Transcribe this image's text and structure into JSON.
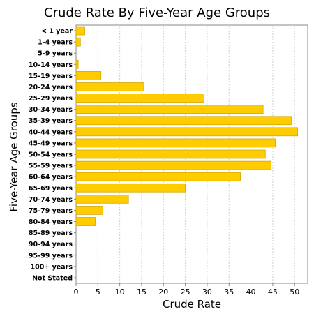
{
  "chart_data": {
    "type": "bar",
    "orientation": "horizontal",
    "title": "Crude Rate By Five-Year Age Groups",
    "xlabel": "Crude Rate",
    "ylabel": "Five-Year Age Groups",
    "xlim": [
      0,
      53
    ],
    "xticks": [
      0,
      5,
      10,
      15,
      20,
      25,
      30,
      35,
      40,
      45,
      50
    ],
    "grid": "vertical-dashed",
    "legend": "none",
    "bar_color": "#FFCC00",
    "bar_edge_color": "#D4A800",
    "categories": [
      "< 1 year",
      "1-4 years",
      "5-9 years",
      "10-14 years",
      "15-19 years",
      "20-24 years",
      "25-29 years",
      "30-34 years",
      "35-39 years",
      "40-44 years",
      "45-49 years",
      "50-54 years",
      "55-59 years",
      "60-64 years",
      "65-69 years",
      "70-74 years",
      "75-79 years",
      "80-84 years",
      "85-89 years",
      "90-94 years",
      "95-99 years",
      "100+ years",
      "Not Stated"
    ],
    "values": [
      2.0,
      1.0,
      0,
      0.5,
      5.7,
      15.5,
      29.3,
      42.8,
      49.3,
      50.7,
      45.6,
      43.3,
      44.6,
      37.6,
      25.0,
      12.0,
      6.1,
      4.4,
      0,
      0,
      0,
      0,
      0
    ]
  }
}
